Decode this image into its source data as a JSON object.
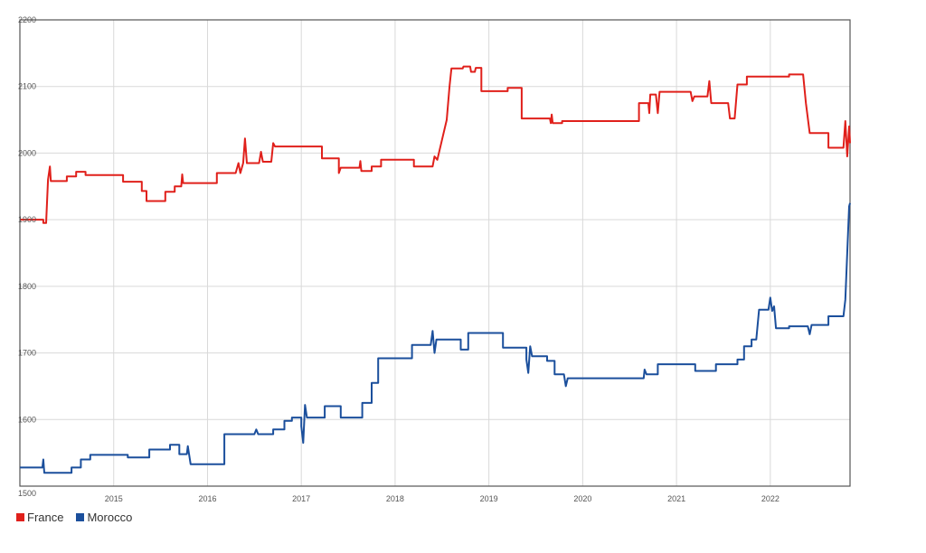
{
  "chart_data": {
    "type": "line",
    "title": "",
    "xlabel": "",
    "ylabel": "",
    "xlim": [
      2014.0,
      2022.85
    ],
    "ylim": [
      1500,
      2200
    ],
    "x_ticks": [
      "2015",
      "2016",
      "2017",
      "2018",
      "2019",
      "2020",
      "2021",
      "2022"
    ],
    "y_ticks": [
      "1500",
      "1600",
      "1700",
      "1800",
      "1900",
      "2000",
      "2100",
      "2200"
    ],
    "grid": true,
    "legend_position": "bottom-left",
    "series": [
      {
        "name": "France",
        "color": "#e0201b",
        "points": [
          [
            2014.0,
            1900
          ],
          [
            2014.25,
            1900
          ],
          [
            2014.25,
            1895
          ],
          [
            2014.28,
            1895
          ],
          [
            2014.3,
            1960
          ],
          [
            2014.32,
            1980
          ],
          [
            2014.33,
            1958
          ],
          [
            2014.5,
            1958
          ],
          [
            2014.5,
            1965
          ],
          [
            2014.6,
            1965
          ],
          [
            2014.6,
            1972
          ],
          [
            2014.7,
            1972
          ],
          [
            2014.7,
            1967
          ],
          [
            2015.1,
            1967
          ],
          [
            2015.1,
            1957
          ],
          [
            2015.3,
            1957
          ],
          [
            2015.3,
            1943
          ],
          [
            2015.35,
            1943
          ],
          [
            2015.35,
            1928
          ],
          [
            2015.55,
            1928
          ],
          [
            2015.55,
            1942
          ],
          [
            2015.65,
            1942
          ],
          [
            2015.65,
            1950
          ],
          [
            2015.72,
            1950
          ],
          [
            2015.73,
            1968
          ],
          [
            2015.74,
            1955
          ],
          [
            2016.1,
            1955
          ],
          [
            2016.1,
            1970
          ],
          [
            2016.3,
            1970
          ],
          [
            2016.33,
            1985
          ],
          [
            2016.35,
            1970
          ],
          [
            2016.38,
            1985
          ],
          [
            2016.4,
            2022
          ],
          [
            2016.42,
            1985
          ],
          [
            2016.55,
            1985
          ],
          [
            2016.57,
            2002
          ],
          [
            2016.59,
            1987
          ],
          [
            2016.68,
            1987
          ],
          [
            2016.7,
            2015
          ],
          [
            2016.72,
            2010
          ],
          [
            2017.22,
            2010
          ],
          [
            2017.22,
            1992
          ],
          [
            2017.4,
            1992
          ],
          [
            2017.4,
            1970
          ],
          [
            2017.42,
            1978
          ],
          [
            2017.62,
            1978
          ],
          [
            2017.63,
            1988
          ],
          [
            2017.64,
            1973
          ],
          [
            2017.75,
            1973
          ],
          [
            2017.75,
            1980
          ],
          [
            2017.85,
            1980
          ],
          [
            2017.85,
            1990
          ],
          [
            2018.2,
            1990
          ],
          [
            2018.2,
            1980
          ],
          [
            2018.4,
            1980
          ],
          [
            2018.42,
            1995
          ],
          [
            2018.45,
            1990
          ],
          [
            2018.5,
            2020
          ],
          [
            2018.55,
            2050
          ],
          [
            2018.58,
            2100
          ],
          [
            2018.6,
            2127
          ],
          [
            2018.72,
            2127
          ],
          [
            2018.73,
            2130
          ],
          [
            2018.8,
            2130
          ],
          [
            2018.81,
            2122
          ],
          [
            2018.85,
            2122
          ],
          [
            2018.86,
            2128
          ],
          [
            2018.92,
            2128
          ],
          [
            2018.92,
            2093
          ],
          [
            2019.2,
            2093
          ],
          [
            2019.2,
            2098
          ],
          [
            2019.35,
            2098
          ],
          [
            2019.35,
            2052
          ],
          [
            2019.65,
            2052
          ],
          [
            2019.66,
            2045
          ],
          [
            2019.67,
            2058
          ],
          [
            2019.68,
            2045
          ],
          [
            2019.78,
            2045
          ],
          [
            2019.78,
            2048
          ],
          [
            2020.6,
            2048
          ],
          [
            2020.6,
            2075
          ],
          [
            2020.7,
            2075
          ],
          [
            2020.71,
            2060
          ],
          [
            2020.72,
            2088
          ],
          [
            2020.78,
            2088
          ],
          [
            2020.8,
            2060
          ],
          [
            2020.82,
            2092
          ],
          [
            2021.15,
            2092
          ],
          [
            2021.17,
            2078
          ],
          [
            2021.19,
            2085
          ],
          [
            2021.33,
            2085
          ],
          [
            2021.35,
            2108
          ],
          [
            2021.37,
            2075
          ],
          [
            2021.55,
            2075
          ],
          [
            2021.57,
            2052
          ],
          [
            2021.62,
            2052
          ],
          [
            2021.65,
            2103
          ],
          [
            2021.75,
            2103
          ],
          [
            2021.75,
            2115
          ],
          [
            2022.2,
            2115
          ],
          [
            2022.2,
            2118
          ],
          [
            2022.35,
            2118
          ],
          [
            2022.38,
            2075
          ],
          [
            2022.42,
            2030
          ],
          [
            2022.62,
            2030
          ],
          [
            2022.62,
            2008
          ],
          [
            2022.78,
            2008
          ],
          [
            2022.8,
            2048
          ],
          [
            2022.82,
            1995
          ],
          [
            2022.84,
            2040
          ],
          [
            2022.85,
            2015
          ]
        ]
      },
      {
        "name": "Morocco",
        "color": "#1b4f9c",
        "points": [
          [
            2014.0,
            1528
          ],
          [
            2014.24,
            1528
          ],
          [
            2014.25,
            1540
          ],
          [
            2014.26,
            1520
          ],
          [
            2014.55,
            1520
          ],
          [
            2014.55,
            1528
          ],
          [
            2014.65,
            1528
          ],
          [
            2014.65,
            1540
          ],
          [
            2014.75,
            1540
          ],
          [
            2014.75,
            1547
          ],
          [
            2015.15,
            1547
          ],
          [
            2015.15,
            1543
          ],
          [
            2015.38,
            1543
          ],
          [
            2015.38,
            1555
          ],
          [
            2015.6,
            1555
          ],
          [
            2015.6,
            1562
          ],
          [
            2015.7,
            1562
          ],
          [
            2015.7,
            1548
          ],
          [
            2015.78,
            1548
          ],
          [
            2015.79,
            1560
          ],
          [
            2015.82,
            1533
          ],
          [
            2016.18,
            1533
          ],
          [
            2016.18,
            1578
          ],
          [
            2016.5,
            1578
          ],
          [
            2016.52,
            1585
          ],
          [
            2016.54,
            1578
          ],
          [
            2016.7,
            1578
          ],
          [
            2016.7,
            1585
          ],
          [
            2016.82,
            1585
          ],
          [
            2016.82,
            1598
          ],
          [
            2016.9,
            1598
          ],
          [
            2016.9,
            1603
          ],
          [
            2017.0,
            1603
          ],
          [
            2017.0,
            1590
          ],
          [
            2017.02,
            1565
          ],
          [
            2017.04,
            1622
          ],
          [
            2017.06,
            1603
          ],
          [
            2017.25,
            1603
          ],
          [
            2017.25,
            1620
          ],
          [
            2017.42,
            1620
          ],
          [
            2017.42,
            1603
          ],
          [
            2017.65,
            1603
          ],
          [
            2017.65,
            1625
          ],
          [
            2017.75,
            1625
          ],
          [
            2017.75,
            1655
          ],
          [
            2017.82,
            1655
          ],
          [
            2017.82,
            1692
          ],
          [
            2018.18,
            1692
          ],
          [
            2018.18,
            1712
          ],
          [
            2018.38,
            1712
          ],
          [
            2018.4,
            1733
          ],
          [
            2018.42,
            1700
          ],
          [
            2018.44,
            1720
          ],
          [
            2018.7,
            1720
          ],
          [
            2018.7,
            1705
          ],
          [
            2018.78,
            1705
          ],
          [
            2018.78,
            1730
          ],
          [
            2019.15,
            1730
          ],
          [
            2019.15,
            1708
          ],
          [
            2019.4,
            1708
          ],
          [
            2019.4,
            1690
          ],
          [
            2019.42,
            1670
          ],
          [
            2019.44,
            1710
          ],
          [
            2019.46,
            1695
          ],
          [
            2019.62,
            1695
          ],
          [
            2019.62,
            1688
          ],
          [
            2019.7,
            1688
          ],
          [
            2019.7,
            1668
          ],
          [
            2019.8,
            1668
          ],
          [
            2019.82,
            1650
          ],
          [
            2019.84,
            1662
          ],
          [
            2020.65,
            1662
          ],
          [
            2020.66,
            1675
          ],
          [
            2020.68,
            1668
          ],
          [
            2020.8,
            1668
          ],
          [
            2020.8,
            1683
          ],
          [
            2021.2,
            1683
          ],
          [
            2021.2,
            1673
          ],
          [
            2021.42,
            1673
          ],
          [
            2021.42,
            1683
          ],
          [
            2021.65,
            1683
          ],
          [
            2021.65,
            1690
          ],
          [
            2021.72,
            1690
          ],
          [
            2021.72,
            1710
          ],
          [
            2021.8,
            1710
          ],
          [
            2021.8,
            1720
          ],
          [
            2021.85,
            1720
          ],
          [
            2021.88,
            1765
          ],
          [
            2021.98,
            1765
          ],
          [
            2022.0,
            1783
          ],
          [
            2022.02,
            1763
          ],
          [
            2022.04,
            1770
          ],
          [
            2022.06,
            1737
          ],
          [
            2022.2,
            1737
          ],
          [
            2022.2,
            1740
          ],
          [
            2022.4,
            1740
          ],
          [
            2022.42,
            1728
          ],
          [
            2022.44,
            1742
          ],
          [
            2022.62,
            1742
          ],
          [
            2022.62,
            1755
          ],
          [
            2022.78,
            1755
          ],
          [
            2022.8,
            1780
          ],
          [
            2022.82,
            1850
          ],
          [
            2022.84,
            1920
          ],
          [
            2022.85,
            1925
          ]
        ]
      }
    ]
  }
}
